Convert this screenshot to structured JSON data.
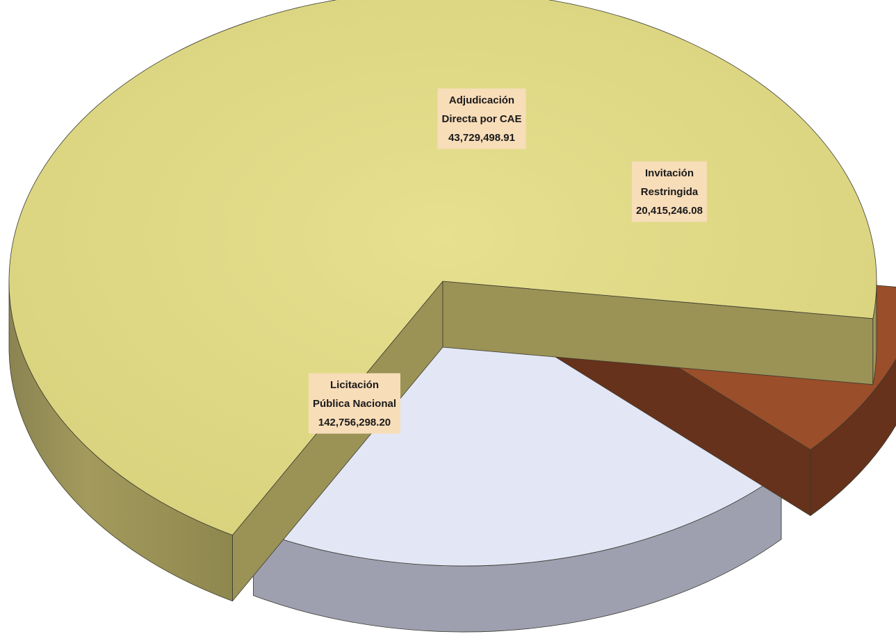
{
  "chart_data": {
    "type": "pie",
    "style": "3d-exploded",
    "title": "",
    "legend": "none",
    "slices": [
      {
        "category_line1": "Licitación",
        "category_line2": "Pública Nacional",
        "value": 142756298.2,
        "value_label": "142,756,298.20",
        "color": "#E2DC87",
        "side_color": "#9B9256"
      },
      {
        "category_line1": "Adjudicación",
        "category_line2": "Directa por CAE",
        "value": 43729498.91,
        "value_label": "43,729,498.91",
        "color": "#E3E6F5",
        "side_color": "#9EA0B0"
      },
      {
        "category_line1": "Invitación",
        "category_line2": "Restringida",
        "value": 20415246.08,
        "value_label": "20,415,246.08",
        "color": "#9B4E2A",
        "side_color": "#66321B"
      }
    ],
    "label_background": "#F8DDB9"
  }
}
